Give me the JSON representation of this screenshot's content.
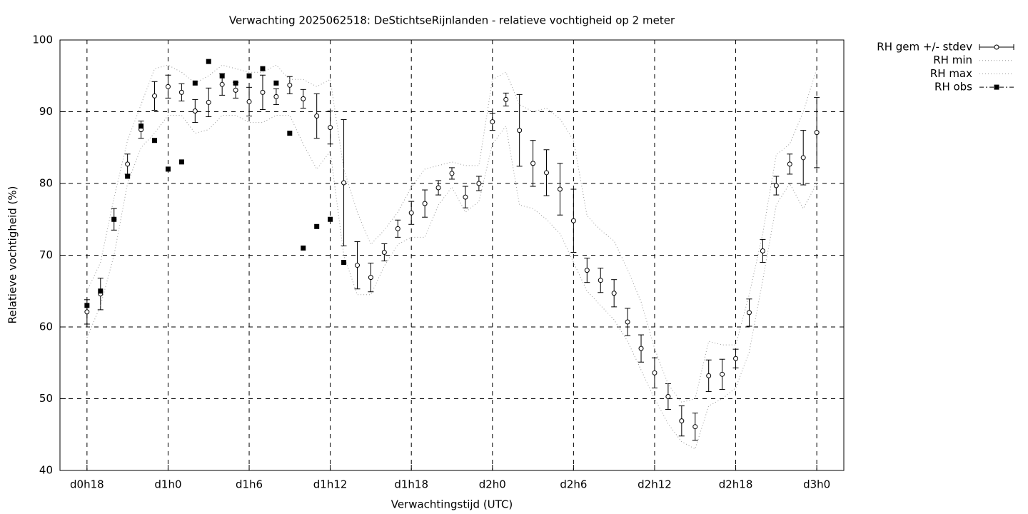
{
  "chart_data": {
    "type": "errorbar",
    "title": "Verwachting 2025062518: DeStichtseRijnlanden - relatieve vochtigheid op 2 meter",
    "x_label": "Verwachtingstijd (UTC)",
    "y_label": "Relatieve vochtigheid (%)",
    "x": [
      18,
      19,
      20,
      21,
      22,
      23,
      24,
      25,
      26,
      27,
      28,
      29,
      30,
      31,
      32,
      33,
      34,
      35,
      36,
      37,
      38,
      39,
      40,
      41,
      42,
      43,
      44,
      45,
      46,
      47,
      48,
      49,
      50,
      51,
      52,
      53,
      54,
      55,
      56,
      57,
      58,
      59,
      60,
      61,
      62,
      63,
      64,
      65,
      66,
      67,
      68,
      69,
      70,
      71,
      72
    ],
    "xlim": [
      16,
      74
    ],
    "xticks": [
      {
        "value": 18,
        "label": "d0h18"
      },
      {
        "value": 24,
        "label": "d1h0"
      },
      {
        "value": 30,
        "label": "d1h6"
      },
      {
        "value": 36,
        "label": "d1h12"
      },
      {
        "value": 42,
        "label": "d1h18"
      },
      {
        "value": 48,
        "label": "d2h0"
      },
      {
        "value": 54,
        "label": "d2h6"
      },
      {
        "value": 60,
        "label": "d2h12"
      },
      {
        "value": 66,
        "label": "d2h18"
      },
      {
        "value": 72,
        "label": "d3h0"
      }
    ],
    "ylim": [
      40,
      100
    ],
    "yticks": [
      40,
      50,
      60,
      70,
      80,
      90,
      100
    ],
    "grid": true,
    "series": [
      {
        "name": "RH gem +/- stdev",
        "style": "errorbars",
        "color": "#000000",
        "values": [
          62.1,
          64.6,
          75,
          82.7,
          87.5,
          92.2,
          93.5,
          92.7,
          90.1,
          91.3,
          93.8,
          93.0,
          91.4,
          92.7,
          92.1,
          93.7,
          91.8,
          89.4,
          87.8,
          80.1,
          68.6,
          66.9,
          70.4,
          73.7,
          75.9,
          77.2,
          79.4,
          81.4,
          78.1,
          80.0,
          88.6,
          91.7,
          87.4,
          82.8,
          81.5,
          79.2,
          74.8,
          67.9,
          66.5,
          64.7,
          60.7,
          57.0,
          53.6,
          50.3,
          46.9,
          46.1,
          53.2,
          53.4,
          55.6,
          62.0,
          70.6,
          79.7,
          82.7,
          83.6,
          87.1
        ],
        "errors": [
          1.7,
          2.2,
          1.5,
          1.4,
          1.2,
          2.0,
          1.6,
          1.2,
          1.6,
          2.0,
          1.5,
          1.1,
          2.0,
          2.4,
          1.1,
          1.2,
          1.3,
          3.1,
          2.3,
          8.8,
          3.3,
          2.0,
          1.2,
          1.2,
          1.6,
          1.9,
          1.0,
          0.8,
          1.5,
          1.0,
          1.2,
          0.9,
          5.0,
          3.2,
          3.2,
          3.6,
          4.4,
          1.7,
          1.7,
          1.9,
          1.9,
          1.9,
          2.1,
          1.8,
          2.1,
          1.9,
          2.2,
          2.1,
          1.3,
          1.9,
          1.6,
          1.3,
          1.4,
          3.8,
          4.9
        ]
      },
      {
        "name": "RH min",
        "style": "dotted",
        "color": "#999999",
        "values": [
          58.5,
          63,
          70,
          80,
          85,
          87,
          89.5,
          89.5,
          87,
          87.5,
          89.5,
          89.5,
          88.5,
          88.5,
          89.5,
          89.5,
          85.5,
          82,
          84.5,
          70,
          64.5,
          64.5,
          68.5,
          71.5,
          72.5,
          72.5,
          77,
          79.5,
          76,
          77.5,
          85.5,
          88,
          77,
          76.5,
          75,
          73,
          69,
          65,
          63,
          61,
          58,
          54,
          50,
          46.5,
          44,
          43,
          49,
          50,
          51.5,
          56.5,
          66.5,
          77,
          80,
          76.5,
          80
        ]
      },
      {
        "name": "RH max",
        "style": "dotted",
        "color": "#999999",
        "values": [
          65,
          69,
          78,
          86,
          91,
          96,
          96.5,
          95.5,
          94,
          95,
          96.5,
          96,
          95.5,
          95.5,
          96.5,
          94.5,
          94.5,
          93.5,
          94.5,
          82,
          76,
          71.5,
          73.5,
          76,
          79.5,
          82,
          82.5,
          83,
          82.5,
          82.5,
          94.5,
          95.5,
          91,
          90,
          90.5,
          89,
          86,
          75.5,
          73.5,
          72,
          68,
          63.5,
          57,
          52,
          49.5,
          50,
          58,
          57.5,
          57.5,
          64.5,
          73,
          84,
          85.5,
          90,
          96
        ]
      },
      {
        "name": "RH obs",
        "style": "squares",
        "color": "#000000",
        "values": [
          63,
          65,
          75,
          81,
          88,
          86,
          82,
          83,
          94,
          97,
          95,
          94,
          95,
          96,
          94,
          87,
          71,
          74,
          75,
          69,
          null,
          null,
          null,
          null,
          null,
          null,
          null,
          null,
          null,
          null,
          null,
          null,
          null,
          null,
          null,
          null,
          null,
          null,
          null,
          null,
          null,
          null,
          null,
          null,
          null,
          null,
          null,
          null,
          null,
          null,
          null,
          null,
          null,
          null,
          null
        ]
      }
    ]
  }
}
